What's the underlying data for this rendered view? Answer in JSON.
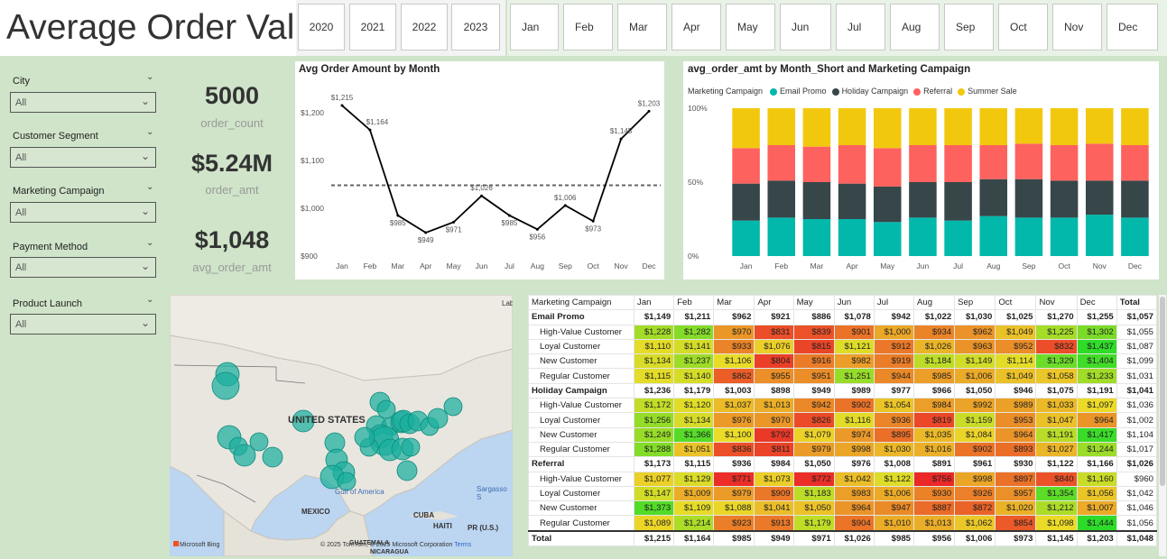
{
  "header": {
    "title": "Average Order Value"
  },
  "years": [
    "2020",
    "2021",
    "2022",
    "2023"
  ],
  "months": [
    "Jan",
    "Feb",
    "Mar",
    "Apr",
    "May",
    "Jun",
    "Jul",
    "Aug",
    "Sep",
    "Oct",
    "Nov",
    "Dec"
  ],
  "filters": [
    {
      "label": "City",
      "value": "All"
    },
    {
      "label": "Customer Segment",
      "value": "All"
    },
    {
      "label": "Marketing Campaign",
      "value": "All"
    },
    {
      "label": "Payment Method",
      "value": "All"
    },
    {
      "label": "Product Launch",
      "value": "All"
    }
  ],
  "kpis": [
    {
      "value": "5000",
      "label": "order_count"
    },
    {
      "value": "$5.24M",
      "label": "order_amt"
    },
    {
      "value": "$1,048",
      "label": "avg_order_amt"
    }
  ],
  "line_chart": {
    "title": "Avg Order Amount by Month"
  },
  "bar_chart": {
    "title": "avg_order_amt by Month_Short and Marketing Campaign",
    "legend_title": "Marketing Campaign"
  },
  "map": {
    "labels": {
      "us": "UNITED STATES",
      "mexico": "MEXICO",
      "cuba": "CUBA",
      "haiti": "HAITI",
      "pr": "PR\n(U.S.)",
      "gulf": "Gulf of America",
      "sargasso": "Sargasso S",
      "guatemala": "GUATEMALA",
      "nicaragua": "NICARAGUA",
      "lab": "Lab"
    },
    "bing": "Microsoft Bing",
    "copyright": "© 2025 TomTom, © 2025 Microsoft Corporation",
    "terms": "Terms"
  },
  "matrix": {
    "headers": [
      "Marketing Campaign",
      "Jan",
      "Feb",
      "Mar",
      "Apr",
      "May",
      "Jun",
      "Jul",
      "Aug",
      "Sep",
      "Oct",
      "Nov",
      "Dec",
      "Total"
    ],
    "rows": [
      {
        "type": "grp",
        "cells": [
          "Email Promo",
          "$1,149",
          "$1,211",
          "$962",
          "$921",
          "$886",
          "$1,078",
          "$942",
          "$1,022",
          "$1,030",
          "$1,025",
          "$1,270",
          "$1,255",
          "$1,057"
        ]
      },
      {
        "type": "sub",
        "cells": [
          "High-Value Customer",
          "$1,228",
          "$1,282",
          "$970",
          "$831",
          "$839",
          "$901",
          "$1,000",
          "$934",
          "$962",
          "$1,049",
          "$1,225",
          "$1,302",
          "$1,055"
        ]
      },
      {
        "type": "sub",
        "cells": [
          "Loyal Customer",
          "$1,110",
          "$1,141",
          "$933",
          "$1,076",
          "$815",
          "$1,121",
          "$912",
          "$1,026",
          "$963",
          "$952",
          "$832",
          "$1,437",
          "$1,087"
        ]
      },
      {
        "type": "sub",
        "cells": [
          "New Customer",
          "$1,134",
          "$1,237",
          "$1,106",
          "$804",
          "$916",
          "$982",
          "$919",
          "$1,184",
          "$1,149",
          "$1,114",
          "$1,329",
          "$1,404",
          "$1,099"
        ]
      },
      {
        "type": "sub",
        "cells": [
          "Regular Customer",
          "$1,115",
          "$1,140",
          "$862",
          "$955",
          "$951",
          "$1,251",
          "$944",
          "$985",
          "$1,006",
          "$1,049",
          "$1,058",
          "$1,233",
          "$1,031"
        ]
      },
      {
        "type": "grp",
        "cells": [
          "Holiday Campaign",
          "$1,236",
          "$1,179",
          "$1,003",
          "$898",
          "$949",
          "$989",
          "$977",
          "$966",
          "$1,050",
          "$946",
          "$1,075",
          "$1,191",
          "$1,041"
        ]
      },
      {
        "type": "sub",
        "cells": [
          "High-Value Customer",
          "$1,172",
          "$1,120",
          "$1,037",
          "$1,013",
          "$942",
          "$902",
          "$1,054",
          "$984",
          "$992",
          "$989",
          "$1,033",
          "$1,097",
          "$1,036"
        ]
      },
      {
        "type": "sub",
        "cells": [
          "Loyal Customer",
          "$1,256",
          "$1,134",
          "$976",
          "$970",
          "$826",
          "$1,116",
          "$936",
          "$819",
          "$1,159",
          "$953",
          "$1,047",
          "$964",
          "$1,002"
        ]
      },
      {
        "type": "sub",
        "cells": [
          "New Customer",
          "$1,249",
          "$1,366",
          "$1,100",
          "$792",
          "$1,079",
          "$974",
          "$895",
          "$1,035",
          "$1,084",
          "$964",
          "$1,191",
          "$1,417",
          "$1,104"
        ]
      },
      {
        "type": "sub",
        "cells": [
          "Regular Customer",
          "$1,288",
          "$1,051",
          "$836",
          "$811",
          "$979",
          "$998",
          "$1,030",
          "$1,016",
          "$902",
          "$893",
          "$1,027",
          "$1,244",
          "$1,017"
        ]
      },
      {
        "type": "grp",
        "cells": [
          "Referral",
          "$1,173",
          "$1,115",
          "$936",
          "$984",
          "$1,050",
          "$976",
          "$1,008",
          "$891",
          "$961",
          "$930",
          "$1,122",
          "$1,166",
          "$1,026"
        ]
      },
      {
        "type": "sub",
        "cells": [
          "High-Value Customer",
          "$1,077",
          "$1,129",
          "$771",
          "$1,073",
          "$772",
          "$1,042",
          "$1,122",
          "$756",
          "$998",
          "$897",
          "$840",
          "$1,160",
          "$960"
        ]
      },
      {
        "type": "sub",
        "cells": [
          "Loyal Customer",
          "$1,147",
          "$1,009",
          "$979",
          "$909",
          "$1,183",
          "$983",
          "$1,006",
          "$930",
          "$926",
          "$957",
          "$1,354",
          "$1,056",
          "$1,042"
        ]
      },
      {
        "type": "sub",
        "cells": [
          "New Customer",
          "$1,373",
          "$1,109",
          "$1,088",
          "$1,041",
          "$1,050",
          "$964",
          "$947",
          "$887",
          "$872",
          "$1,020",
          "$1,212",
          "$1,007",
          "$1,046"
        ]
      },
      {
        "type": "sub",
        "cells": [
          "Regular Customer",
          "$1,089",
          "$1,214",
          "$923",
          "$913",
          "$1,179",
          "$904",
          "$1,010",
          "$1,013",
          "$1,062",
          "$854",
          "$1,098",
          "$1,444",
          "$1,056"
        ]
      },
      {
        "type": "tot",
        "cells": [
          "Total",
          "$1,215",
          "$1,164",
          "$985",
          "$949",
          "$971",
          "$1,026",
          "$985",
          "$956",
          "$1,006",
          "$973",
          "$1,145",
          "$1,203",
          "$1,048"
        ]
      }
    ]
  },
  "chart_data": [
    {
      "type": "line",
      "title": "Avg Order Amount by Month",
      "categories": [
        "Jan",
        "Feb",
        "Mar",
        "Apr",
        "May",
        "Jun",
        "Jul",
        "Aug",
        "Sep",
        "Oct",
        "Nov",
        "Dec"
      ],
      "values": [
        1215,
        1164,
        985,
        949,
        971,
        1026,
        985,
        956,
        1006,
        973,
        1145,
        1203
      ],
      "data_labels": [
        "$1,215",
        "$1,164",
        "$985",
        "$949",
        "$971",
        "$1,026",
        "$985",
        "$956",
        "$1,006",
        "$973",
        "$1,145",
        "$1,203"
      ],
      "ylim": [
        900,
        1215
      ],
      "yticks": [
        "$900",
        "$1,000",
        "$1,100",
        "$1,200"
      ],
      "reference_line": 1048,
      "color": "#000000"
    },
    {
      "type": "bar",
      "stacked": "100%",
      "title": "avg_order_amt by Month_Short and Marketing Campaign",
      "categories": [
        "Jan",
        "Feb",
        "Mar",
        "Apr",
        "May",
        "Jun",
        "Jul",
        "Aug",
        "Sep",
        "Oct",
        "Nov",
        "Dec"
      ],
      "yticks": [
        "0%",
        "50%",
        "100%"
      ],
      "series": [
        {
          "name": "Email Promo",
          "color": "#01b8aa",
          "values": [
            0.24,
            0.26,
            0.25,
            0.25,
            0.23,
            0.26,
            0.24,
            0.27,
            0.26,
            0.26,
            0.28,
            0.26
          ]
        },
        {
          "name": "Holiday Campaign",
          "color": "#374649",
          "values": [
            0.25,
            0.25,
            0.25,
            0.24,
            0.24,
            0.24,
            0.26,
            0.25,
            0.26,
            0.25,
            0.23,
            0.25
          ]
        },
        {
          "name": "Referral",
          "color": "#fd625e",
          "values": [
            0.24,
            0.24,
            0.24,
            0.26,
            0.26,
            0.25,
            0.25,
            0.23,
            0.24,
            0.24,
            0.25,
            0.24
          ]
        },
        {
          "name": "Summer Sale",
          "color": "#f2c80f",
          "values": [
            0.27,
            0.25,
            0.26,
            0.25,
            0.27,
            0.25,
            0.25,
            0.25,
            0.24,
            0.25,
            0.24,
            0.25
          ]
        }
      ]
    }
  ]
}
